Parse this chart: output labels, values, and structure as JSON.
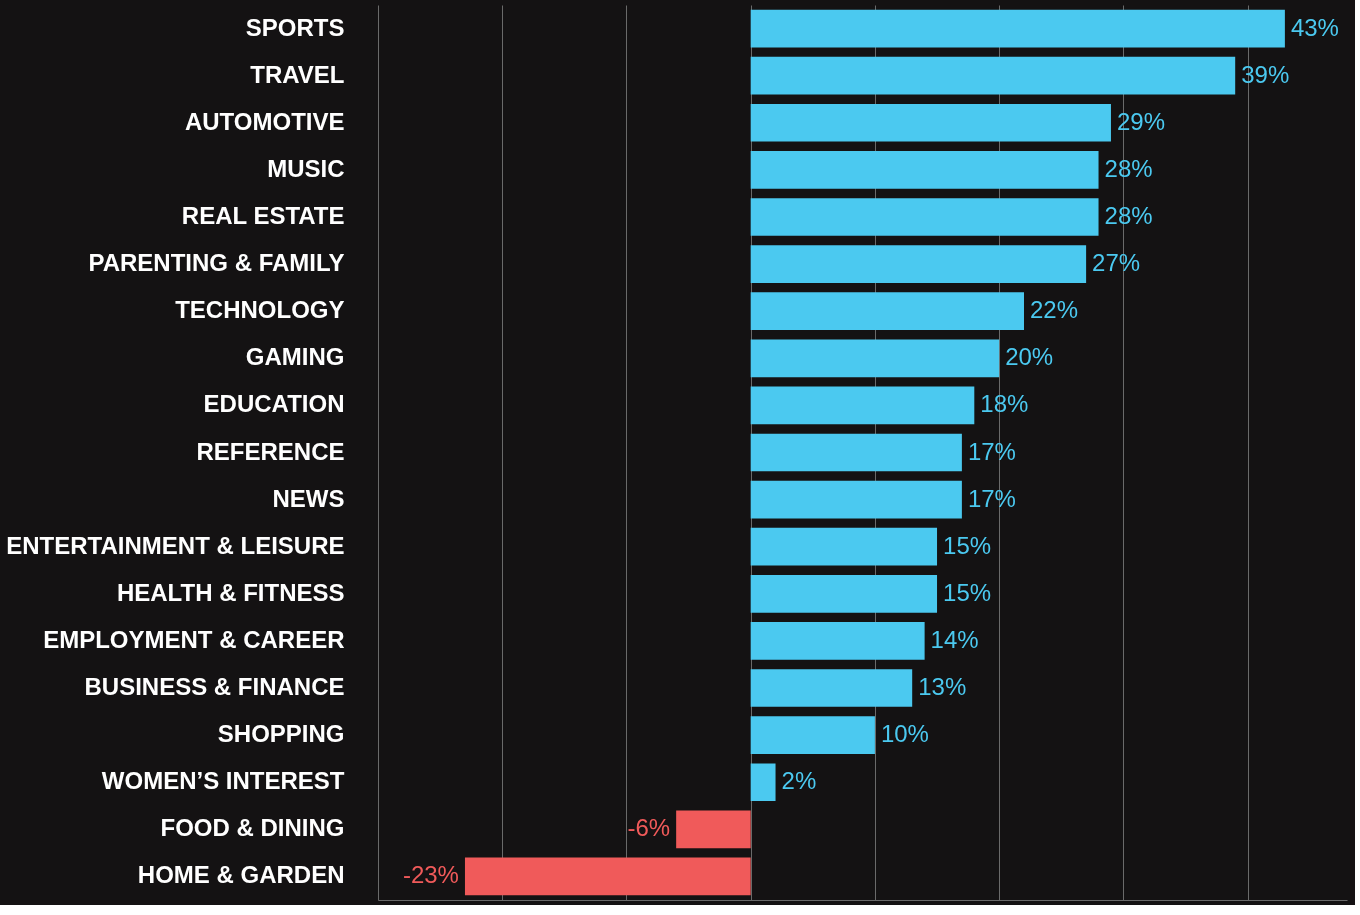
{
  "chart_data": {
    "type": "bar",
    "orientation": "horizontal",
    "categories": [
      "SPORTS",
      "TRAVEL",
      "AUTOMOTIVE",
      "MUSIC",
      "REAL ESTATE",
      "PARENTING & FAMILY",
      "TECHNOLOGY",
      "GAMING",
      "EDUCATION",
      "REFERENCE",
      "NEWS",
      "ENTERTAINMENT & LEISURE",
      "HEALTH & FITNESS",
      "EMPLOYMENT & CAREER",
      "BUSINESS & FINANCE",
      "SHOPPING",
      "WOMEN’S INTEREST",
      "FOOD & DINING",
      "HOME & GARDEN"
    ],
    "values": [
      43,
      39,
      29,
      28,
      28,
      27,
      22,
      20,
      18,
      17,
      17,
      15,
      15,
      14,
      13,
      10,
      2,
      -6,
      -23
    ],
    "value_labels": [
      "43%",
      "39%",
      "29%",
      "28%",
      "28%",
      "27%",
      "22%",
      "20%",
      "18%",
      "17%",
      "17%",
      "15%",
      "15%",
      "14%",
      "13%",
      "10%",
      "2%",
      "-6%",
      "-23%"
    ],
    "colors": [
      "#4bc9f0",
      "#4bc9f0",
      "#4bc9f0",
      "#4bc9f0",
      "#4bc9f0",
      "#4bc9f0",
      "#4bc9f0",
      "#4bc9f0",
      "#4bc9f0",
      "#4bc9f0",
      "#4bc9f0",
      "#4bc9f0",
      "#4bc9f0",
      "#4bc9f0",
      "#4bc9f0",
      "#4bc9f0",
      "#4bc9f0",
      "#f05a5a",
      "#f05a5a"
    ],
    "xlim": [
      -30,
      48
    ],
    "xticks": [
      {
        "value": -30,
        "label": null
      },
      {
        "value": -20,
        "label": null
      },
      {
        "value": -10,
        "label": null
      },
      {
        "value": 0,
        "label": null
      },
      {
        "value": 10,
        "label": null
      },
      {
        "value": 20,
        "label": null
      },
      {
        "value": 30,
        "label": null
      },
      {
        "value": 40,
        "label": null
      }
    ],
    "grid": "x",
    "tick_labels": "y"
  }
}
